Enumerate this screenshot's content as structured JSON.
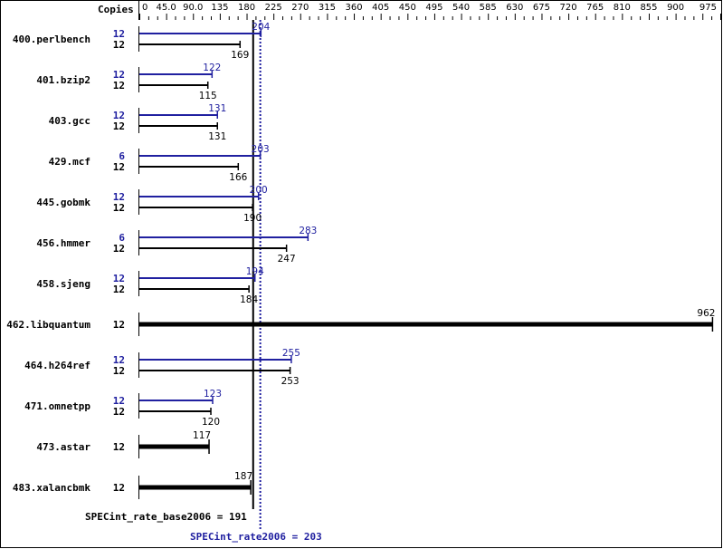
{
  "chart_data": {
    "type": "bar",
    "orientation": "horizontal",
    "axis_label": "Copies",
    "xlim": [
      0,
      975
    ],
    "tick_labels": [
      "0",
      "45.0",
      "90.0",
      "135",
      "180",
      "225",
      "270",
      "315",
      "360",
      "405",
      "450",
      "495",
      "540",
      "585",
      "630",
      "675",
      "720",
      "765",
      "810",
      "855",
      "900",
      "975"
    ],
    "tick_values": [
      0,
      45,
      90,
      135,
      180,
      225,
      270,
      315,
      360,
      405,
      450,
      495,
      540,
      585,
      630,
      675,
      720,
      765,
      810,
      855,
      900,
      975
    ],
    "colors": {
      "base": "#000000",
      "peak": "#2020a0"
    },
    "benchmarks": [
      {
        "name": "400.perlbench",
        "peak_copies": "12",
        "peak": 204,
        "base_copies": "12",
        "base": 169
      },
      {
        "name": "401.bzip2",
        "peak_copies": "12",
        "peak": 122,
        "base_copies": "12",
        "base": 115
      },
      {
        "name": "403.gcc",
        "peak_copies": "12",
        "peak": 131,
        "base_copies": "12",
        "base": 131
      },
      {
        "name": "429.mcf",
        "peak_copies": "6",
        "peak": 203,
        "base_copies": "12",
        "base": 166
      },
      {
        "name": "445.gobmk",
        "peak_copies": "12",
        "peak": 200,
        "base_copies": "12",
        "base": 190
      },
      {
        "name": "456.hmmer",
        "peak_copies": "6",
        "peak": 283,
        "base_copies": "12",
        "base": 247
      },
      {
        "name": "458.sjeng",
        "peak_copies": "12",
        "peak": 194,
        "base_copies": "12",
        "base": 184
      },
      {
        "name": "462.libquantum",
        "base_copies": "12",
        "base": 962
      },
      {
        "name": "464.h264ref",
        "peak_copies": "12",
        "peak": 255,
        "base_copies": "12",
        "base": 253
      },
      {
        "name": "471.omnetpp",
        "peak_copies": "12",
        "peak": 123,
        "base_copies": "12",
        "base": 120
      },
      {
        "name": "473.astar",
        "base_copies": "12",
        "base": 117
      },
      {
        "name": "483.xalancbmk",
        "base_copies": "12",
        "base": 187
      }
    ],
    "summary": {
      "base_label": "SPECint_rate_base2006 = 191",
      "base_value": 191,
      "peak_label": "SPECint_rate2006 = 203",
      "peak_value": 203
    }
  }
}
